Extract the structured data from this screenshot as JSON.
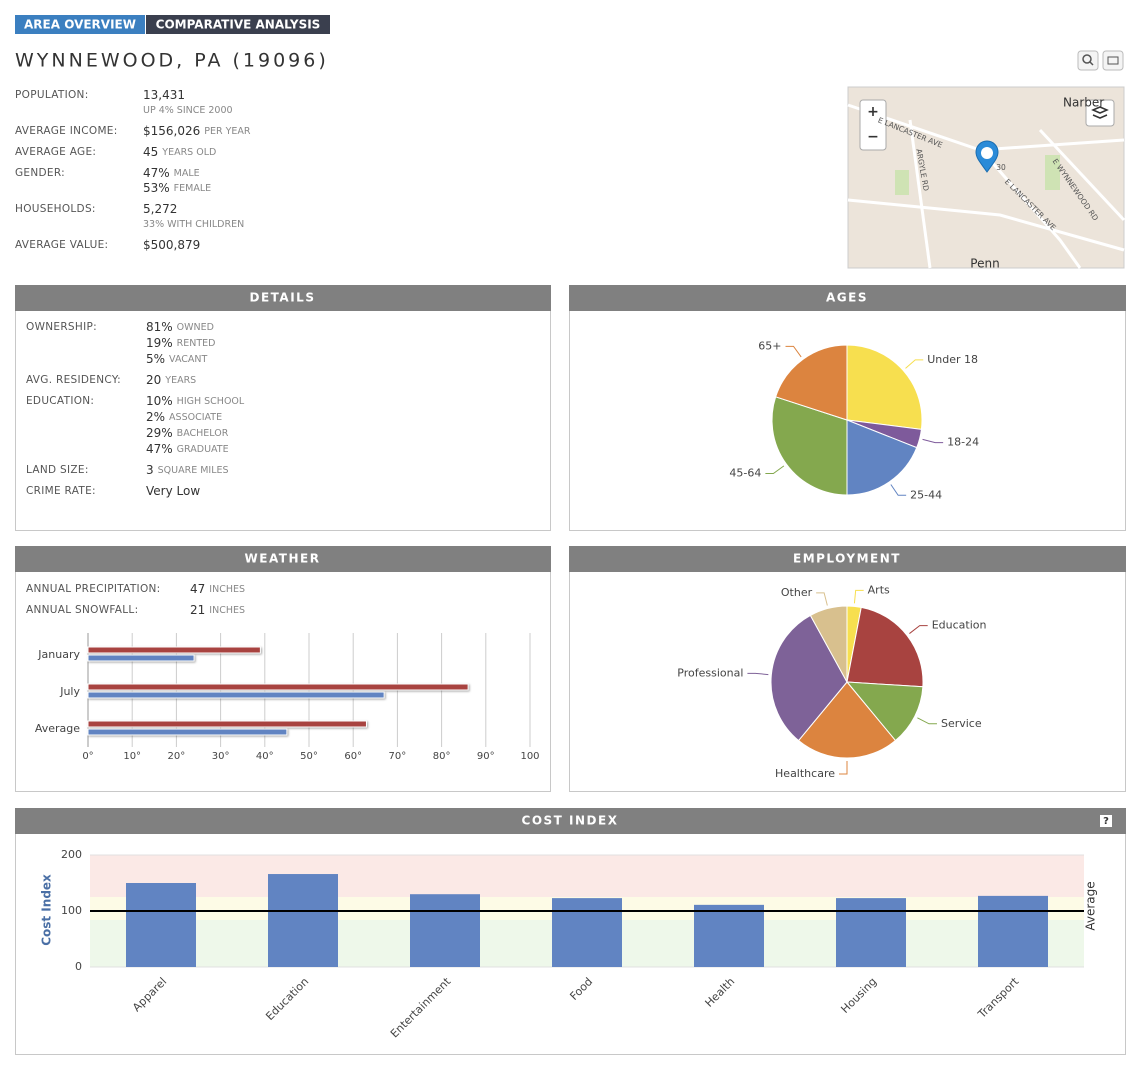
{
  "tabs": [
    "AREA OVERVIEW",
    "COMPARATIVE ANALYSIS"
  ],
  "title": "WYNNEWOOD, PA (19096)",
  "overview": [
    {
      "label": "POPULATION:",
      "lines": [
        {
          "main": "13,431"
        },
        {
          "unit": "UP 4% SINCE 2000"
        }
      ]
    },
    {
      "label": "AVERAGE INCOME:",
      "lines": [
        {
          "main": "$156,026",
          "unit": "PER YEAR"
        }
      ]
    },
    {
      "label": "AVERAGE AGE:",
      "lines": [
        {
          "main": "45",
          "unit": "YEARS OLD"
        }
      ]
    },
    {
      "label": "GENDER:",
      "lines": [
        {
          "main": "47%",
          "unit": "MALE"
        },
        {
          "main": "53%",
          "unit": "FEMALE"
        }
      ]
    },
    {
      "label": "HOUSEHOLDS:",
      "lines": [
        {
          "main": "5,272"
        },
        {
          "unit": "33% WITH CHILDREN"
        }
      ]
    },
    {
      "label": "AVERAGE VALUE:",
      "lines": [
        {
          "main": "$500,879"
        }
      ]
    }
  ],
  "map": {
    "zoom": [
      "+",
      "−"
    ],
    "labels": [
      "Narber",
      "E LANCASTER AVE",
      "ARGYLE RD",
      "E WYNNEWOOD RD",
      "E LANCASTER AVE",
      "30",
      "Penn"
    ]
  },
  "details": {
    "title": "DETAILS",
    "rows": [
      {
        "label": "OWNERSHIP:",
        "lines": [
          {
            "main": "81%",
            "unit": "OWNED"
          },
          {
            "main": "19%",
            "unit": "RENTED"
          },
          {
            "main": "5%",
            "unit": "VACANT"
          }
        ]
      },
      {
        "label": "AVG. RESIDENCY:",
        "lines": [
          {
            "main": "20",
            "unit": "YEARS"
          }
        ]
      },
      {
        "label": "EDUCATION:",
        "lines": [
          {
            "main": "10%",
            "unit": "HIGH SCHOOL"
          },
          {
            "main": "2%",
            "unit": "ASSOCIATE"
          },
          {
            "main": "29%",
            "unit": "BACHELOR"
          },
          {
            "main": "47%",
            "unit": "GRADUATE"
          }
        ]
      },
      {
        "label": "LAND SIZE:",
        "lines": [
          {
            "main": "3",
            "unit": "SQUARE MILES"
          }
        ]
      },
      {
        "label": "CRIME RATE:",
        "lines": [
          {
            "main": "Very Low"
          }
        ]
      }
    ]
  },
  "ages": {
    "title": "AGES",
    "chart_data": {
      "type": "pie",
      "categories": [
        "Under 18",
        "18-24",
        "25-44",
        "45-64",
        "65+"
      ],
      "values": [
        27,
        4,
        19,
        30,
        20
      ],
      "colors": [
        "#f7df4f",
        "#7e5a9b",
        "#6184c2",
        "#84a84e",
        "#dc843f"
      ]
    }
  },
  "weather": {
    "title": "WEATHER",
    "rows": [
      {
        "label": "ANNUAL PRECIPITATION:",
        "lines": [
          {
            "main": "47",
            "unit": "INCHES"
          }
        ]
      },
      {
        "label": "ANNUAL SNOWFALL:",
        "lines": [
          {
            "main": "21",
            "unit": "INCHES"
          }
        ]
      }
    ],
    "chart_data": {
      "type": "bar",
      "orientation": "horizontal",
      "categories": [
        "January",
        "July",
        "Average"
      ],
      "series": [
        {
          "color": "#a84340",
          "values": [
            39,
            86,
            63
          ]
        },
        {
          "color": "#6184c2",
          "values": [
            24,
            67,
            45
          ]
        }
      ],
      "xlim": [
        0,
        100
      ],
      "xticks": [
        {
          "value": 0,
          "label": "0°"
        },
        {
          "value": 10,
          "label": "10°"
        },
        {
          "value": 20,
          "label": "20°"
        },
        {
          "value": 30,
          "label": "30°"
        },
        {
          "value": 40,
          "label": "40°"
        },
        {
          "value": 50,
          "label": "50°"
        },
        {
          "value": 60,
          "label": "60°"
        },
        {
          "value": 70,
          "label": "70°"
        },
        {
          "value": 80,
          "label": "80°"
        },
        {
          "value": 90,
          "label": "90°"
        },
        {
          "value": 100,
          "label": "100"
        }
      ],
      "grid": true
    }
  },
  "employment": {
    "title": "EMPLOYMENT",
    "chart_data": {
      "type": "pie",
      "categories": [
        "Arts",
        "Education",
        "Service",
        "Healthcare",
        "Professional",
        "Other"
      ],
      "values": [
        3,
        23,
        13,
        22,
        31,
        8
      ],
      "colors": [
        "#f7df4f",
        "#a84340",
        "#84a84e",
        "#dc843f",
        "#7e6298",
        "#d8c08e"
      ]
    }
  },
  "cost": {
    "title": "COST INDEX",
    "help": "?",
    "chart_data": {
      "type": "bar",
      "categories": [
        "Apparel",
        "Education",
        "Entertainment",
        "Food",
        "Health",
        "Housing",
        "Transport"
      ],
      "values": [
        150,
        166,
        130,
        123,
        111,
        123,
        127
      ],
      "color": "#6184c2",
      "ylim": [
        0,
        200
      ],
      "yticks": [
        0,
        100,
        200
      ],
      "y_label": "Cost Index",
      "y2_label": "Average",
      "reference": 100,
      "bands": [
        {
          "from": 125,
          "to": 200,
          "color": "#fbe9e6"
        },
        {
          "from": 84,
          "to": 125,
          "color": "#fdfbe6"
        },
        {
          "from": 0,
          "to": 84,
          "color": "#eef8ea"
        }
      ]
    }
  }
}
